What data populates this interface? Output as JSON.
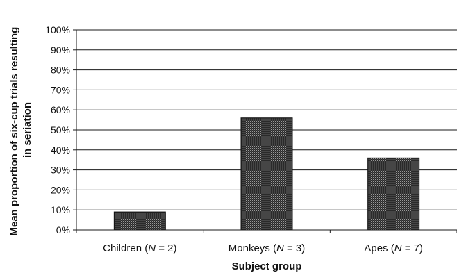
{
  "chart_data": {
    "type": "bar",
    "xlabel": "Subject group",
    "ylabel_lines": [
      "Mean proportion of six-cup trials resulting",
      "in seriation"
    ],
    "yticks": [
      "0%",
      "10%",
      "20%",
      "30%",
      "40%",
      "50%",
      "60%",
      "70%",
      "80%",
      "90%",
      "100%"
    ],
    "ylim": [
      0,
      100
    ],
    "categories": [
      {
        "prefix": "Children (",
        "var": "N",
        "suffix": " = 2)"
      },
      {
        "prefix": "Monkeys (",
        "var": "N",
        "suffix": " = 3)"
      },
      {
        "prefix": "Apes (",
        "var": "N",
        "suffix": " = 7)"
      }
    ],
    "values": [
      9,
      56,
      36
    ],
    "grid": true,
    "legend": "none",
    "bar_color": "#3a3a3a"
  }
}
